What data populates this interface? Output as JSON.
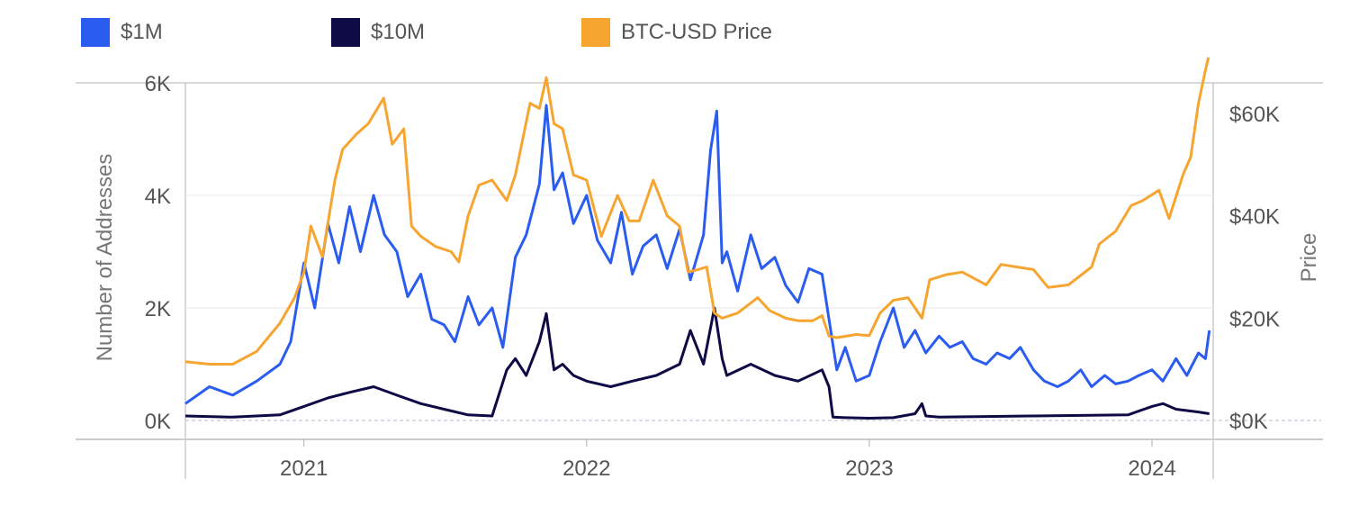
{
  "legend": [
    {
      "label": "$1M",
      "color": "#2b5cf0"
    },
    {
      "label": "$10M",
      "color": "#0d0a45"
    },
    {
      "label": "BTC-USD Price",
      "color": "#f6a530"
    }
  ],
  "chart_data": {
    "type": "line",
    "ylabel": "Number of Addresses",
    "y2label": "Price",
    "ylim": [
      0,
      6000
    ],
    "y2lim": [
      0,
      66000
    ],
    "xlim": [
      "2020-08-01",
      "2024-03-20"
    ],
    "grid": true,
    "legend_position": "top-left",
    "y_ticks": [
      "0K",
      "2K",
      "4K",
      "6K"
    ],
    "y2_ticks": [
      "$0K",
      "$20K",
      "$40K",
      "$60K"
    ],
    "x_ticks": [
      "2021",
      "2022",
      "2023",
      "2024"
    ],
    "series": [
      {
        "name": "$1M",
        "axis": "left",
        "color": "#2b5cf0",
        "x": [
          "2020-08-01",
          "2020-09-01",
          "2020-10-01",
          "2020-11-01",
          "2020-12-01",
          "2020-12-15",
          "2021-01-01",
          "2021-01-15",
          "2021-02-01",
          "2021-02-15",
          "2021-03-01",
          "2021-03-15",
          "2021-04-01",
          "2021-04-15",
          "2021-05-01",
          "2021-05-15",
          "2021-06-01",
          "2021-06-15",
          "2021-07-01",
          "2021-07-15",
          "2021-08-01",
          "2021-08-15",
          "2021-09-01",
          "2021-09-15",
          "2021-10-01",
          "2021-10-15",
          "2021-11-01",
          "2021-11-10",
          "2021-11-20",
          "2021-12-01",
          "2021-12-15",
          "2022-01-01",
          "2022-01-15",
          "2022-02-01",
          "2022-02-15",
          "2022-03-01",
          "2022-03-15",
          "2022-04-01",
          "2022-04-15",
          "2022-05-01",
          "2022-05-15",
          "2022-06-01",
          "2022-06-10",
          "2022-06-18",
          "2022-06-25",
          "2022-07-01",
          "2022-07-15",
          "2022-08-01",
          "2022-08-15",
          "2022-09-01",
          "2022-09-15",
          "2022-10-01",
          "2022-10-15",
          "2022-11-01",
          "2022-11-10",
          "2022-11-20",
          "2022-12-01",
          "2022-12-15",
          "2023-01-01",
          "2023-01-15",
          "2023-02-01",
          "2023-02-15",
          "2023-03-01",
          "2023-03-15",
          "2023-04-01",
          "2023-04-15",
          "2023-05-01",
          "2023-05-15",
          "2023-06-01",
          "2023-06-15",
          "2023-07-01",
          "2023-07-15",
          "2023-08-01",
          "2023-08-15",
          "2023-09-01",
          "2023-09-15",
          "2023-10-01",
          "2023-10-15",
          "2023-11-01",
          "2023-11-15",
          "2023-12-01",
          "2023-12-15",
          "2024-01-01",
          "2024-01-15",
          "2024-02-01",
          "2024-02-15",
          "2024-03-01",
          "2024-03-10",
          "2024-03-15"
        ],
        "values": [
          300,
          600,
          450,
          700,
          1000,
          1400,
          2800,
          2000,
          3500,
          2800,
          3800,
          3000,
          4000,
          3300,
          3000,
          2200,
          2600,
          1800,
          1700,
          1400,
          2200,
          1700,
          2000,
          1300,
          2900,
          3300,
          4200,
          5600,
          4100,
          4400,
          3500,
          4000,
          3200,
          2800,
          3700,
          2600,
          3100,
          3300,
          2700,
          3400,
          2500,
          3300,
          4800,
          5500,
          2800,
          3000,
          2300,
          3300,
          2700,
          2900,
          2400,
          2100,
          2700,
          2600,
          1800,
          900,
          1300,
          700,
          800,
          1400,
          2000,
          1300,
          1600,
          1200,
          1500,
          1300,
          1400,
          1100,
          1000,
          1200,
          1100,
          1300,
          900,
          700,
          600,
          700,
          900,
          600,
          800,
          650,
          700,
          800,
          900,
          700,
          1100,
          800,
          1200,
          1100,
          1600
        ]
      },
      {
        "name": "$10M",
        "axis": "left",
        "color": "#0d0a45",
        "x": [
          "2020-08-01",
          "2020-10-01",
          "2020-12-01",
          "2021-01-01",
          "2021-02-01",
          "2021-03-01",
          "2021-04-01",
          "2021-05-01",
          "2021-06-01",
          "2021-07-01",
          "2021-08-01",
          "2021-09-01",
          "2021-09-20",
          "2021-10-01",
          "2021-10-15",
          "2021-11-01",
          "2021-11-10",
          "2021-11-20",
          "2021-12-01",
          "2021-12-15",
          "2022-01-01",
          "2022-02-01",
          "2022-03-01",
          "2022-04-01",
          "2022-05-01",
          "2022-05-15",
          "2022-06-01",
          "2022-06-15",
          "2022-06-25",
          "2022-07-01",
          "2022-08-01",
          "2022-09-01",
          "2022-10-01",
          "2022-11-01",
          "2022-11-10",
          "2022-11-15",
          "2022-12-01",
          "2023-01-01",
          "2023-02-01",
          "2023-03-01",
          "2023-03-10",
          "2023-03-15",
          "2023-04-01",
          "2023-06-01",
          "2023-08-01",
          "2023-10-01",
          "2023-12-01",
          "2024-01-01",
          "2024-01-15",
          "2024-02-01",
          "2024-03-01",
          "2024-03-15"
        ],
        "values": [
          80,
          60,
          100,
          250,
          400,
          500,
          600,
          450,
          300,
          200,
          100,
          80,
          900,
          1100,
          800,
          1400,
          1900,
          900,
          1000,
          800,
          700,
          600,
          700,
          800,
          1000,
          1600,
          1000,
          2000,
          1100,
          800,
          1000,
          800,
          700,
          900,
          600,
          60,
          50,
          40,
          50,
          120,
          300,
          80,
          60,
          70,
          80,
          90,
          100,
          250,
          300,
          200,
          150,
          120
        ]
      },
      {
        "name": "BTC-USD Price",
        "axis": "right",
        "color": "#f6a530",
        "x": [
          "2020-08-01",
          "2020-09-01",
          "2020-10-01",
          "2020-11-01",
          "2020-12-01",
          "2020-12-20",
          "2021-01-01",
          "2021-01-10",
          "2021-01-25",
          "2021-02-10",
          "2021-02-20",
          "2021-03-10",
          "2021-03-25",
          "2021-04-14",
          "2021-04-25",
          "2021-05-10",
          "2021-05-20",
          "2021-06-01",
          "2021-06-20",
          "2021-07-10",
          "2021-07-20",
          "2021-08-01",
          "2021-08-15",
          "2021-09-01",
          "2021-09-20",
          "2021-10-01",
          "2021-10-20",
          "2021-11-01",
          "2021-11-10",
          "2021-11-20",
          "2021-12-01",
          "2021-12-15",
          "2022-01-01",
          "2022-01-20",
          "2022-02-10",
          "2022-02-25",
          "2022-03-10",
          "2022-03-28",
          "2022-04-15",
          "2022-05-01",
          "2022-05-12",
          "2022-05-25",
          "2022-06-05",
          "2022-06-15",
          "2022-06-25",
          "2022-07-15",
          "2022-08-10",
          "2022-08-25",
          "2022-09-15",
          "2022-10-01",
          "2022-10-20",
          "2022-11-01",
          "2022-11-10",
          "2022-11-20",
          "2022-12-15",
          "2023-01-01",
          "2023-01-15",
          "2023-02-01",
          "2023-02-20",
          "2023-03-10",
          "2023-03-20",
          "2023-04-10",
          "2023-05-01",
          "2023-06-01",
          "2023-06-20",
          "2023-07-10",
          "2023-08-01",
          "2023-08-20",
          "2023-09-15",
          "2023-10-15",
          "2023-10-25",
          "2023-11-15",
          "2023-12-05",
          "2023-12-20",
          "2024-01-10",
          "2024-01-23",
          "2024-02-10",
          "2024-02-20",
          "2024-03-01",
          "2024-03-10",
          "2024-03-14"
        ],
        "values": [
          11500,
          11000,
          11000,
          13500,
          19000,
          24000,
          29000,
          38000,
          32000,
          47000,
          53000,
          56000,
          58000,
          63000,
          54000,
          57000,
          38000,
          36000,
          34000,
          33000,
          31000,
          40000,
          46000,
          47000,
          43000,
          48000,
          62000,
          61000,
          67000,
          58000,
          57000,
          48000,
          47000,
          36000,
          44000,
          39000,
          39000,
          47000,
          40000,
          38000,
          29000,
          29500,
          30000,
          21000,
          20000,
          21000,
          24000,
          21500,
          20000,
          19500,
          19500,
          20500,
          16500,
          16200,
          16800,
          16600,
          21000,
          23500,
          24000,
          20000,
          27500,
          28500,
          29000,
          26500,
          30500,
          30000,
          29500,
          26000,
          26500,
          30000,
          34500,
          37000,
          42000,
          43000,
          45000,
          39500,
          48000,
          51500,
          62000,
          68500,
          71000
        ]
      }
    ]
  }
}
